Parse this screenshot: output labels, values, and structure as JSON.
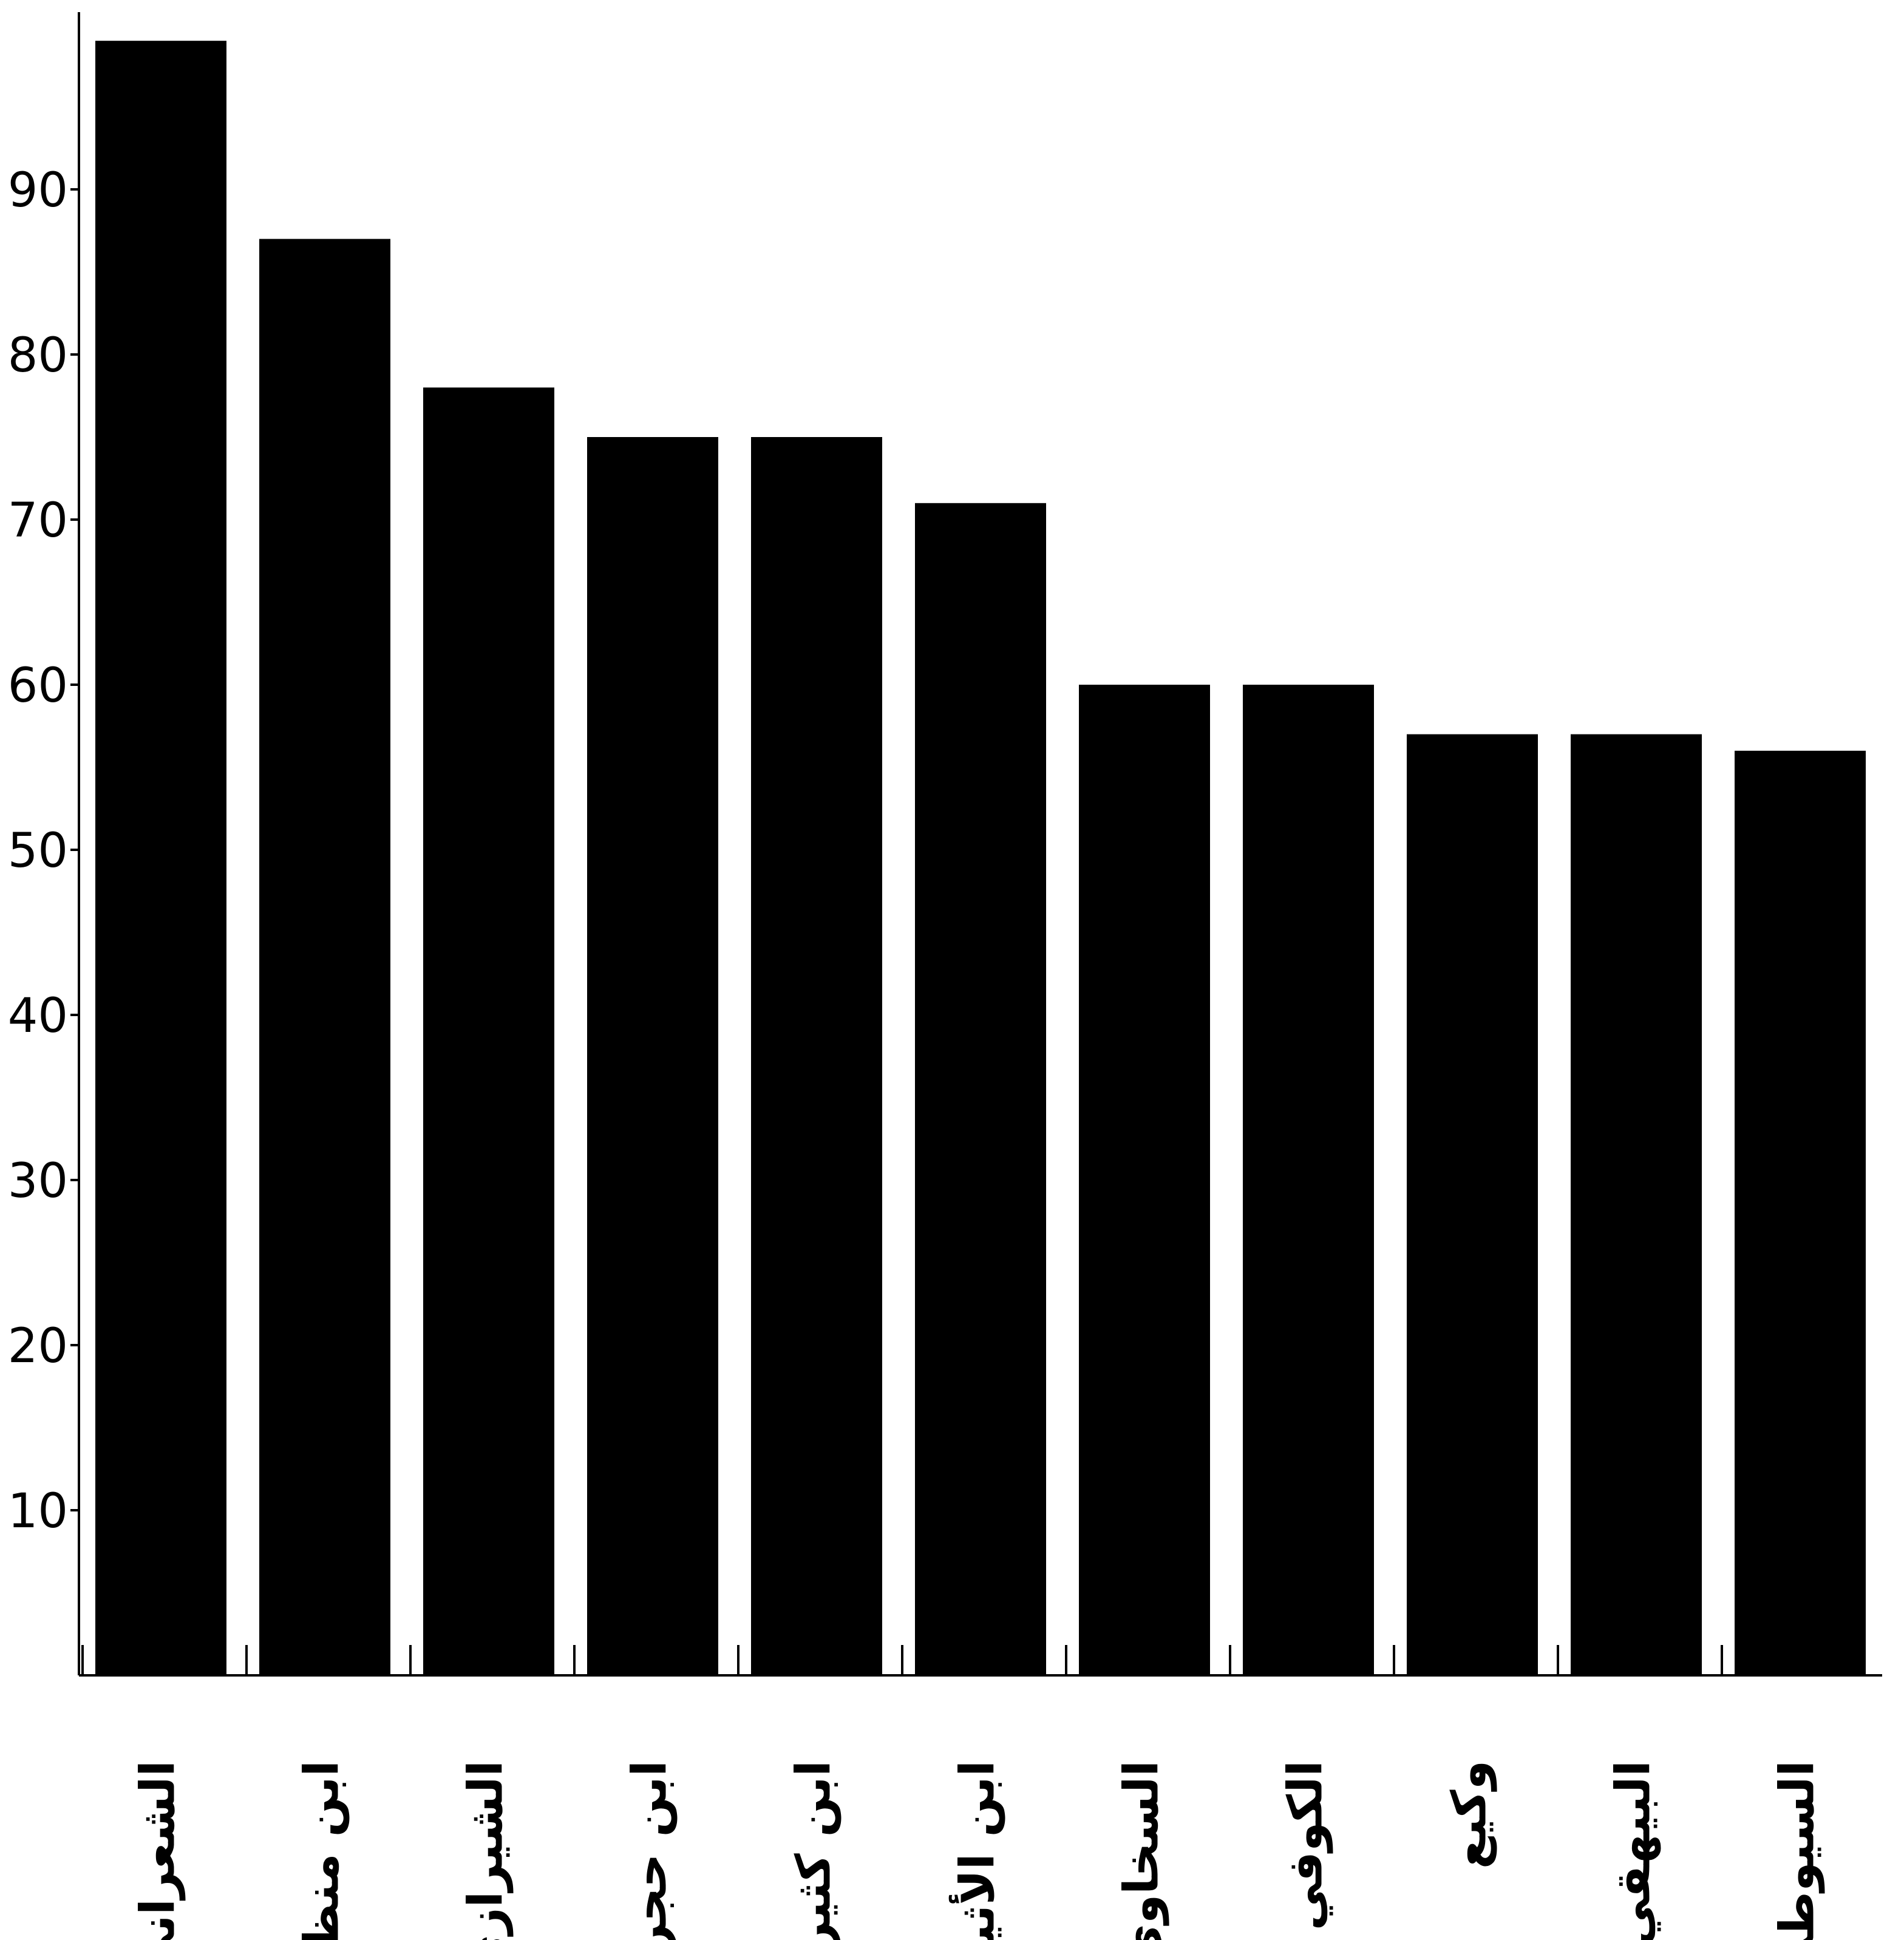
{
  "chart_data": {
    "type": "bar",
    "categories": [
      "الشعراني",
      "ابن منظور",
      "الشيرازي",
      "ابن حجر",
      "ابن كثير",
      "ابن الأثير",
      "السخاوي",
      "الكوفي",
      "وكيع",
      "البيهقي",
      "السيوطي"
    ],
    "values": [
      99,
      87,
      78,
      75,
      75,
      71,
      60,
      60,
      57,
      57,
      56
    ],
    "y_ticks": [
      10,
      20,
      30,
      40,
      50,
      60,
      70,
      80,
      90
    ],
    "ylim": [
      0,
      100
    ],
    "title": "",
    "xlabel": "",
    "ylabel": "",
    "grid": false,
    "bar_color": "#000000"
  }
}
